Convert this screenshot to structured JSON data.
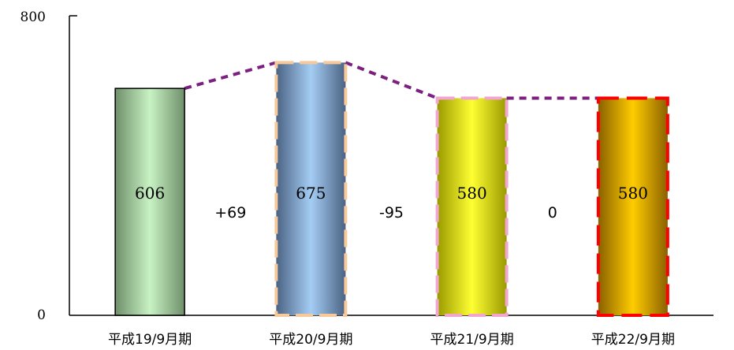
{
  "chart_data": {
    "type": "bar",
    "categories": [
      "平成19/9月期",
      "平成20/9月期",
      "平成21/9月期",
      "平成22/9月期"
    ],
    "values": [
      606,
      675,
      580,
      580
    ],
    "differences": [
      "+69",
      "-95",
      "0"
    ],
    "ylim": [
      0,
      800
    ],
    "yticks": [
      "0",
      "800"
    ],
    "title": "",
    "xlabel": "",
    "ylabel": "",
    "grid": false,
    "connector_color": "#7b1f80",
    "bar_styles": [
      {
        "gradient": [
          "#6f8f6a",
          "#c8f2c4",
          "#6f8f6a"
        ],
        "stroke": "#000000",
        "dash": false
      },
      {
        "gradient": [
          "#4b6383",
          "#a4cdf4",
          "#4b6383"
        ],
        "stroke": "#f7c99a",
        "dash": true
      },
      {
        "gradient": [
          "#9a9a00",
          "#ffff33",
          "#9a9a00"
        ],
        "stroke": "#f2a6cf",
        "dash": true
      },
      {
        "gradient": [
          "#8a6100",
          "#ffcc00",
          "#8a6100"
        ],
        "stroke": "#ff0000",
        "dash": true
      }
    ]
  }
}
